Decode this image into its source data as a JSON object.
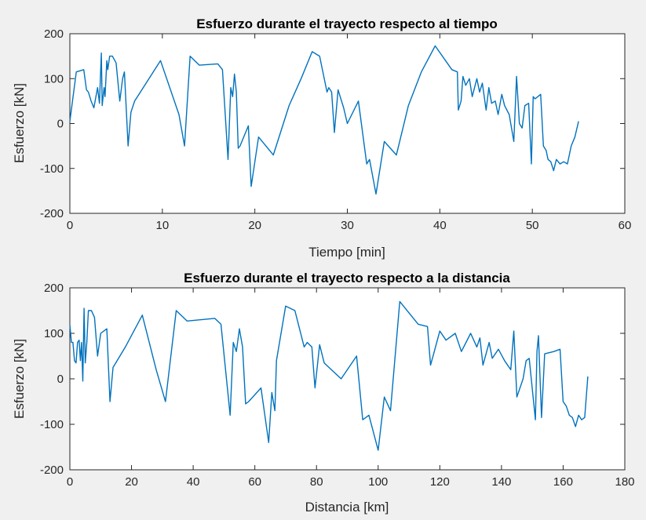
{
  "colors": {
    "series": "#0072bd",
    "background": "#f0f0f0",
    "axes": "#ffffff"
  },
  "chart_data": [
    {
      "type": "line",
      "title": "Esfuerzo durante el trayecto respecto al tiempo",
      "xlabel": "Tiempo [min]",
      "ylabel": "Esfuerzo [kN]",
      "xlim": [
        0,
        60
      ],
      "ylim": [
        -200,
        200
      ],
      "xticks": [
        0,
        10,
        20,
        30,
        40,
        50,
        60
      ],
      "yticks": [
        -200,
        -100,
        0,
        100,
        200
      ],
      "grid": false,
      "series": [
        {
          "x": [
            0,
            0.7,
            1.5,
            1.8,
            2.0,
            2.3,
            2.6,
            3.0,
            3.2,
            3.4,
            3.5,
            3.7,
            3.8,
            4.0,
            4.1,
            4.3,
            4.6,
            5.0,
            5.4,
            5.7,
            5.9,
            6.3,
            6.6,
            7.0,
            9.8,
            11.8,
            12.4,
            13.0,
            14.0,
            16.0,
            16.5,
            17.1,
            17.4,
            17.6,
            17.8,
            18.0,
            18.2,
            18.4,
            19.3,
            19.6,
            20.4,
            22.0,
            23.7,
            25.0,
            26.2,
            27.0,
            27.8,
            28.0,
            28.3,
            28.6,
            29.0,
            29.6,
            30.0,
            31.2,
            32.1,
            32.4,
            33.1,
            34.0,
            35.3,
            36.6,
            38.0,
            39.5,
            41.3,
            41.9,
            42.0,
            42.3,
            42.5,
            42.8,
            43.2,
            43.5,
            44.0,
            44.3,
            44.6,
            45.0,
            45.3,
            45.6,
            46.0,
            46.3,
            46.7,
            47.0,
            47.5,
            48.0,
            48.3,
            48.6,
            48.9,
            49.2,
            49.6,
            49.9,
            50.1,
            50.3,
            50.6,
            50.9,
            51.2,
            51.5,
            51.7,
            52.0,
            52.3,
            52.6,
            53.0,
            53.4,
            53.8,
            54.2,
            54.6,
            55.0
          ],
          "y": [
            5,
            115,
            120,
            75,
            70,
            50,
            35,
            80,
            45,
            157,
            40,
            80,
            60,
            140,
            120,
            150,
            150,
            135,
            50,
            100,
            115,
            -50,
            25,
            50,
            140,
            20,
            -50,
            150,
            130,
            133,
            120,
            -80,
            80,
            60,
            110,
            70,
            -55,
            -50,
            -5,
            -140,
            -30,
            -70,
            40,
            100,
            160,
            150,
            70,
            80,
            70,
            -20,
            75,
            35,
            0,
            50,
            -90,
            -80,
            -157,
            -40,
            -70,
            40,
            115,
            173,
            120,
            115,
            30,
            50,
            105,
            85,
            100,
            60,
            100,
            70,
            90,
            30,
            80,
            45,
            50,
            20,
            65,
            40,
            20,
            -40,
            105,
            0,
            -10,
            40,
            45,
            -90,
            60,
            55,
            60,
            65,
            -50,
            -60,
            -80,
            -85,
            -105,
            -80,
            -90,
            -85,
            -90,
            -50,
            -30,
            5
          ]
        }
      ]
    },
    {
      "type": "line",
      "title": "Esfuerzo durante el trayecto respecto a la distancia",
      "xlabel": "Distancia [km]",
      "ylabel": "Esfuerzo [kN]",
      "xlim": [
        0,
        180
      ],
      "ylim": [
        -200,
        200
      ],
      "xticks": [
        0,
        20,
        40,
        60,
        80,
        100,
        120,
        140,
        160,
        180
      ],
      "yticks": [
        -200,
        -100,
        0,
        100,
        200
      ],
      "grid": false,
      "series": [
        {
          "x": [
            0,
            0.5,
            1.0,
            1.5,
            2.0,
            2.5,
            3.0,
            3.4,
            3.8,
            4.2,
            4.6,
            5.0,
            5.5,
            6.0,
            7.0,
            8.0,
            9.0,
            10.0,
            12.0,
            13.0,
            14.0,
            18.0,
            23.5,
            28.0,
            31.0,
            34.5,
            38.0,
            47.0,
            49.0,
            52.0,
            53.0,
            54.0,
            55.0,
            56.0,
            57.0,
            58.0,
            62.0,
            64.5,
            65.5,
            66.5,
            67.0,
            70.0,
            73.0,
            76.0,
            77.0,
            78.5,
            79.5,
            81.0,
            82.5,
            88.0,
            93.0,
            95.0,
            97.0,
            100.0,
            102.0,
            104.0,
            107.0,
            113.0,
            116.0,
            117.0,
            118.0,
            120.0,
            122.0,
            125.0,
            127.0,
            130.0,
            132.0,
            133.0,
            134.0,
            136.0,
            137.0,
            139.0,
            141.0,
            143.0,
            144.0,
            145.0,
            147.0,
            148.0,
            149.0,
            151.0,
            151.5,
            152.0,
            153.0,
            154.0,
            157.0,
            159.0,
            160.0,
            161.0,
            162.0,
            163.0,
            164.0,
            165.0,
            166.0,
            167.0,
            168.0
          ],
          "y": [
            118,
            80,
            80,
            40,
            35,
            80,
            85,
            40,
            80,
            -5,
            155,
            35,
            80,
            150,
            150,
            135,
            50,
            100,
            110,
            -50,
            25,
            70,
            140,
            20,
            -50,
            150,
            127,
            133,
            120,
            -80,
            80,
            60,
            110,
            70,
            -55,
            -50,
            -20,
            -140,
            -30,
            -70,
            40,
            160,
            150,
            70,
            80,
            70,
            -20,
            75,
            35,
            0,
            50,
            -90,
            -80,
            -157,
            -40,
            -70,
            170,
            120,
            115,
            30,
            55,
            105,
            85,
            100,
            60,
            100,
            70,
            90,
            30,
            80,
            45,
            65,
            40,
            20,
            105,
            -40,
            0,
            40,
            45,
            -90,
            60,
            95,
            -85,
            55,
            60,
            65,
            -50,
            -60,
            -80,
            -85,
            -105,
            -80,
            -90,
            -85,
            5
          ]
        }
      ]
    }
  ]
}
